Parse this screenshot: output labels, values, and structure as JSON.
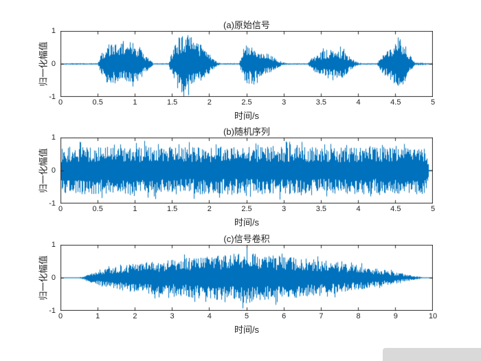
{
  "figure": {
    "background": "#ffffff",
    "line_color": "#0072BD",
    "axis_color": "#2b2b2b",
    "text_color": "#252525",
    "corner_overlay_color": "#d9d9d9"
  },
  "chart_data": [
    {
      "type": "line",
      "signal": "speech-waveform",
      "title": "(a)原始信号",
      "xlabel": "时间/s",
      "ylabel": "归一化幅值",
      "xlim": [
        0,
        5
      ],
      "ylim": [
        -1,
        1
      ],
      "xticks": [
        0,
        0.5,
        1,
        1.5,
        2,
        2.5,
        3,
        3.5,
        4,
        4.5,
        5
      ],
      "xtick_labels": [
        "0",
        "0.5",
        "1",
        "1.5",
        "2",
        "2.5",
        "3",
        "3.5",
        "4",
        "4.5",
        "5"
      ],
      "yticks": [
        -1,
        0,
        1
      ],
      "ytick_labels": [
        "-1",
        "0",
        "1"
      ],
      "grid": false,
      "legend": null,
      "color": "#0072BD",
      "seed": 7,
      "envelope": {
        "t": [
          0,
          0.5,
          0.55,
          0.62,
          0.75,
          0.9,
          1.05,
          1.18,
          1.25,
          1.45,
          1.52,
          1.6,
          1.72,
          1.88,
          2.0,
          2.08,
          2.15,
          2.4,
          2.46,
          2.52,
          2.62,
          2.78,
          2.9,
          2.97,
          3.05,
          3.32,
          3.4,
          3.55,
          3.68,
          3.8,
          3.92,
          3.98,
          4.05,
          4.25,
          4.32,
          4.45,
          4.55,
          4.63,
          4.7,
          4.76,
          5.0
        ],
        "a": [
          0.02,
          0.02,
          0.32,
          0.58,
          0.65,
          0.58,
          0.52,
          0.18,
          0.02,
          0.02,
          0.55,
          0.92,
          0.95,
          0.52,
          0.3,
          0.1,
          0.02,
          0.02,
          0.5,
          0.62,
          0.52,
          0.32,
          0.15,
          0.05,
          0.02,
          0.02,
          0.25,
          0.42,
          0.47,
          0.4,
          0.15,
          0.05,
          0.02,
          0.02,
          0.28,
          0.52,
          0.78,
          0.62,
          0.25,
          0.04,
          0.02
        ]
      }
    },
    {
      "type": "line",
      "signal": "random-noise",
      "title": "(b)随机序列",
      "xlabel": "时间/s",
      "ylabel": "归一化幅值",
      "xlim": [
        0,
        5
      ],
      "ylim": [
        -1,
        1
      ],
      "xticks": [
        0,
        0.5,
        1,
        1.5,
        2,
        2.5,
        3,
        3.5,
        4,
        4.5,
        5
      ],
      "xtick_labels": [
        "0",
        "0.5",
        "1",
        "1.5",
        "2",
        "2.5",
        "3",
        "3.5",
        "4",
        "4.5",
        "5"
      ],
      "yticks": [
        -1,
        0,
        1
      ],
      "ytick_labels": [
        "-1",
        "0",
        "1"
      ],
      "grid": false,
      "legend": null,
      "color": "#0072BD",
      "seed": 13,
      "envelope": {
        "t": [
          0,
          4.92,
          4.95,
          5
        ],
        "a": [
          0.72,
          0.72,
          0.02,
          0.02
        ]
      }
    },
    {
      "type": "line",
      "signal": "convolution-result",
      "title": "(c)信号卷积",
      "xlabel": "时间/s",
      "ylabel": "归一化幅值",
      "xlim": [
        0,
        10
      ],
      "ylim": [
        -1,
        1
      ],
      "xticks": [
        0,
        1,
        2,
        3,
        4,
        5,
        6,
        7,
        8,
        9,
        10
      ],
      "xtick_labels": [
        "0",
        "1",
        "2",
        "3",
        "4",
        "5",
        "6",
        "7",
        "8",
        "9",
        "10"
      ],
      "yticks": [
        -1,
        0,
        1
      ],
      "ytick_labels": [
        "-1",
        "0",
        "1"
      ],
      "grid": false,
      "legend": null,
      "color": "#0072BD",
      "seed": 21,
      "envelope": {
        "t": [
          0,
          0.5,
          0.65,
          0.85,
          1.2,
          1.8,
          2.5,
          3.2,
          4.0,
          4.6,
          5.0,
          5.4,
          6.0,
          6.6,
          7.2,
          8.0,
          8.6,
          9.2,
          9.55,
          9.75,
          10
        ],
        "a": [
          0.012,
          0.012,
          0.06,
          0.16,
          0.3,
          0.42,
          0.5,
          0.58,
          0.65,
          0.72,
          0.78,
          0.72,
          0.66,
          0.6,
          0.52,
          0.38,
          0.26,
          0.12,
          0.05,
          0.012,
          0.012
        ]
      }
    }
  ]
}
